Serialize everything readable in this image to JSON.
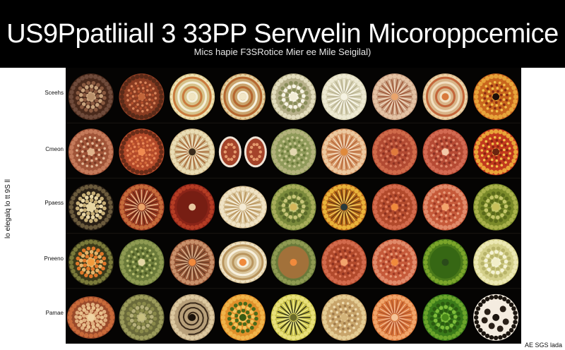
{
  "header": {
    "title": "US9Ppatliiall 3 33PP Servvelin Micoroppcemice",
    "subtitle": "Mics hapie F3SRotice Mier ee Mile Seigilal)"
  },
  "side_label": "lo elegalq lo tt 9S ll",
  "row_labels": [
    "Sceehs",
    "Cmeon",
    "Ppaess",
    "Pneeno",
    "Pamae"
  ],
  "corner_note": "AE SGS lada",
  "grid": {
    "rows": 5,
    "columns": 9,
    "cells": [
      [
        {
          "shape": "circle",
          "bg": "#4a2a1c",
          "ring": "#6e4a3a",
          "inner": "#8a5a40",
          "center": "#b88f6a",
          "dots": "#c9a37c",
          "pattern": "cells"
        },
        {
          "shape": "circle",
          "bg": "#8a3c22",
          "ring": "#5a2a18",
          "inner": "#b14f2c",
          "center": "#c2663a",
          "dots": "#d9855a",
          "pattern": "dense"
        },
        {
          "shape": "circle",
          "bg": "#d6c28a",
          "ring": "#efe3b4",
          "inner": "#c97a3c",
          "center": "#f0e4c0",
          "dots": "#f4efd8",
          "pattern": "rings"
        },
        {
          "shape": "circle",
          "bg": "#c9a36c",
          "ring": "#e6d3a3",
          "inner": "#b5662e",
          "center": "#f1e6c6",
          "dots": "#f7f1de",
          "pattern": "rings"
        },
        {
          "shape": "circle",
          "bg": "#b7b08a",
          "ring": "#e2dcbd",
          "inner": "#8a8e5a",
          "center": "#f1ecd5",
          "dots": "#f7f4e4",
          "pattern": "cells"
        },
        {
          "shape": "circle",
          "bg": "#d9d4b6",
          "ring": "#ede9d2",
          "inner": "#b9b291",
          "center": "#f5f2e2",
          "dots": "#fbf9ee",
          "pattern": "radial"
        },
        {
          "shape": "circle",
          "bg": "#c89e80",
          "ring": "#e3c2a4",
          "inner": "#a05a3a",
          "center": "#e9a46c",
          "dots": "#f0d7bd",
          "pattern": "radial"
        },
        {
          "shape": "circle",
          "bg": "#d8b488",
          "ring": "#ecd3a8",
          "inner": "#c3663a",
          "center": "#d97a3c",
          "dots": "#f2e0c2",
          "pattern": "rings"
        },
        {
          "shape": "circle",
          "bg": "#c9661e",
          "ring": "#e8a43a",
          "inner": "#8a2c14",
          "center": "#1e0e08",
          "dots": "#f0c24a",
          "pattern": "dense"
        }
      ],
      [
        {
          "shape": "circle",
          "bg": "#a05438",
          "ring": "#c47a5a",
          "inner": "#7a3a24",
          "center": "#e0b48c",
          "dots": "#e3b896",
          "pattern": "dense"
        },
        {
          "shape": "circle",
          "bg": "#b44a2a",
          "ring": "#6a2c18",
          "inner": "#d46a3a",
          "center": "#f08a50",
          "dots": "#e88a5a",
          "pattern": "dense"
        },
        {
          "shape": "circle",
          "bg": "#cfb88a",
          "ring": "#e9dcb4",
          "inner": "#a86a3a",
          "center": "#3a2a1a",
          "dots": "#f1e7cb",
          "pattern": "radial"
        },
        {
          "shape": "pair",
          "bg": "#a4432a",
          "ring": "#efe4d6",
          "inner": "#c2552e",
          "center": "#d57b4a",
          "dots": "#e49a6c",
          "pattern": "cells"
        },
        {
          "shape": "circle",
          "bg": "#8f9a5a",
          "ring": "#b3b27c",
          "inner": "#6a7a3a",
          "center": "#e3d8b0",
          "dots": "#c8c690",
          "pattern": "dense"
        },
        {
          "shape": "circle",
          "bg": "#d79a6a",
          "ring": "#ecc89f",
          "inner": "#b86a3c",
          "center": "#e08a3c",
          "dots": "#f4dcc0",
          "pattern": "radial"
        },
        {
          "shape": "circle",
          "bg": "#b24a32",
          "ring": "#cf6a4a",
          "inner": "#8e3222",
          "center": "#e07a3c",
          "dots": "#d87a5c",
          "pattern": "dense"
        },
        {
          "shape": "circle",
          "bg": "#b64a34",
          "ring": "#d26a52",
          "inner": "#8e3224",
          "center": "#f2c8a8",
          "dots": "#e08a6c",
          "pattern": "dense"
        },
        {
          "shape": "circle",
          "bg": "#c23a1e",
          "ring": "#e9a438",
          "inner": "#8a2410",
          "center": "#6a2410",
          "dots": "#f2c24a",
          "pattern": "dense"
        }
      ],
      [
        {
          "shape": "circle",
          "bg": "#2a2016",
          "ring": "#6a5a3c",
          "inner": "#c8b078",
          "center": "#e6d4a0",
          "dots": "#e8d6a4",
          "pattern": "cells"
        },
        {
          "shape": "circle",
          "bg": "#9a3c22",
          "ring": "#c56a3a",
          "inner": "#6a2414",
          "center": "#e9a46a",
          "dots": "#e8b488",
          "pattern": "radial"
        },
        {
          "shape": "circle",
          "bg": "#8a2418",
          "ring": "#b43c24",
          "inner": "#6a1a10",
          "center": "#e8c8a0",
          "dots": "#d04a2c",
          "pattern": "smooth"
        },
        {
          "shape": "ellipse",
          "bg": "#d9c49a",
          "ring": "#efe2c4",
          "inner": "#b9955e",
          "center": "#f4ead4",
          "dots": "#f7f0de",
          "pattern": "radial"
        },
        {
          "shape": "circle",
          "bg": "#7a8a3c",
          "ring": "#a6ac5a",
          "inner": "#5a6a2a",
          "center": "#d4b65a",
          "dots": "#c8c67a",
          "pattern": "cells"
        },
        {
          "shape": "circle",
          "bg": "#b86a1a",
          "ring": "#e9b23a",
          "inner": "#6a3a12",
          "center": "#2a3a3a",
          "dots": "#f2cc5a",
          "pattern": "radial"
        },
        {
          "shape": "circle",
          "bg": "#b24a2c",
          "ring": "#d26a4c",
          "inner": "#8e3220",
          "center": "#f08a3c",
          "dots": "#e07a5a",
          "pattern": "dense"
        },
        {
          "shape": "circle",
          "bg": "#c65a3a",
          "ring": "#e08a6a",
          "inner": "#a03a24",
          "center": "#f3a46c",
          "dots": "#e89a78",
          "pattern": "dense"
        },
        {
          "shape": "circle",
          "bg": "#7a8a2a",
          "ring": "#a8b04a",
          "inner": "#5a6a1a",
          "center": "#c8c05a",
          "dots": "#c4c66a",
          "pattern": "cells"
        }
      ],
      [
        {
          "shape": "circle",
          "bg": "#3a3a1a",
          "ring": "#7a7a3a",
          "inner": "#e0782a",
          "center": "#f29a3c",
          "dots": "#e6b46a",
          "pattern": "cells"
        },
        {
          "shape": "circle",
          "bg": "#6a7a3a",
          "ring": "#8e9a52",
          "inner": "#4a5a22",
          "center": "#e3d6a4",
          "dots": "#b4bc6c",
          "pattern": "dense"
        },
        {
          "shape": "circle",
          "bg": "#9a5a3a",
          "ring": "#c8906a",
          "inner": "#6a3a22",
          "center": "#f08a3c",
          "dots": "#d8b08c",
          "pattern": "radial"
        },
        {
          "shape": "ellipse",
          "bg": "#d9c49a",
          "ring": "#efe2c4",
          "inner": "#b9955e",
          "center": "#f08a3c",
          "dots": "#f7f0de",
          "pattern": "rings"
        },
        {
          "shape": "circle",
          "bg": "#6a7a3a",
          "ring": "#8e9a52",
          "inner": "#c86a3a",
          "center": "#f08a3c",
          "dots": "#b4bc6c",
          "pattern": "smooth"
        },
        {
          "shape": "circle",
          "bg": "#b24a2c",
          "ring": "#d26a4c",
          "inner": "#8e3220",
          "center": "#f2a46c",
          "dots": "#e07a5a",
          "pattern": "dense"
        },
        {
          "shape": "circle",
          "bg": "#c65a3a",
          "ring": "#e08a6a",
          "inner": "#a03a24",
          "center": "#f08a3c",
          "dots": "#e89a78",
          "pattern": "dense"
        },
        {
          "shape": "circle",
          "bg": "#4a7a1a",
          "ring": "#7aa42a",
          "inner": "#2a5a10",
          "center": "#2a4a1a",
          "dots": "#8ebc3a",
          "pattern": "smooth"
        },
        {
          "shape": "circle",
          "bg": "#d4d08a",
          "ring": "#ece8b4",
          "inner": "#b8b46a",
          "center": "#f2eec8",
          "dots": "#f4f2d4",
          "pattern": "cells"
        }
      ],
      [
        {
          "shape": "ellipse",
          "bg": "#9a4a2a",
          "ring": "#c86a3a",
          "inner": "#e0b080",
          "center": "#f0d4a4",
          "dots": "#e8c08c",
          "pattern": "cells"
        },
        {
          "shape": "circle",
          "bg": "#6a6a3a",
          "ring": "#9a9a5a",
          "inner": "#8a8a4a",
          "center": "#c8c080",
          "dots": "#b6b07a",
          "pattern": "cells"
        },
        {
          "shape": "circle",
          "bg": "#b8a07a",
          "ring": "#dcc8a0",
          "inner": "#3a2a1a",
          "center": "#1a120a",
          "dots": "#e8d8b8",
          "pattern": "spiral"
        },
        {
          "shape": "circle",
          "bg": "#e0902a",
          "ring": "#f0b44a",
          "inner": "#4a6a1a",
          "center": "#3a5a12",
          "dots": "#f4c45a",
          "pattern": "cells"
        },
        {
          "shape": "circle",
          "bg": "#c8c04a",
          "ring": "#e8e07a",
          "inner": "#3a3a1a",
          "center": "#6a6a2a",
          "dots": "#f0ec8a",
          "pattern": "radial"
        },
        {
          "shape": "circle",
          "bg": "#c8a46a",
          "ring": "#e4cc94",
          "inner": "#a07a4a",
          "center": "#d4b47a",
          "dots": "#eedbb0",
          "pattern": "dense"
        },
        {
          "shape": "circle",
          "bg": "#d8763a",
          "ring": "#f0a46a",
          "inner": "#b4542a",
          "center": "#f4c49a",
          "dots": "#f2b48a",
          "pattern": "radial"
        },
        {
          "shape": "circle",
          "bg": "#3a7a1a",
          "ring": "#6aa42a",
          "inner": "#2a5a10",
          "center": "#4a8a1a",
          "dots": "#7ebc3a",
          "pattern": "cells"
        },
        {
          "shape": "circle",
          "bg": "#f4ece0",
          "ring": "#1a140e",
          "inner": "#e06a1a",
          "center": "#1a140e",
          "dots": "#2a2018",
          "pattern": "spots"
        }
      ]
    ]
  }
}
